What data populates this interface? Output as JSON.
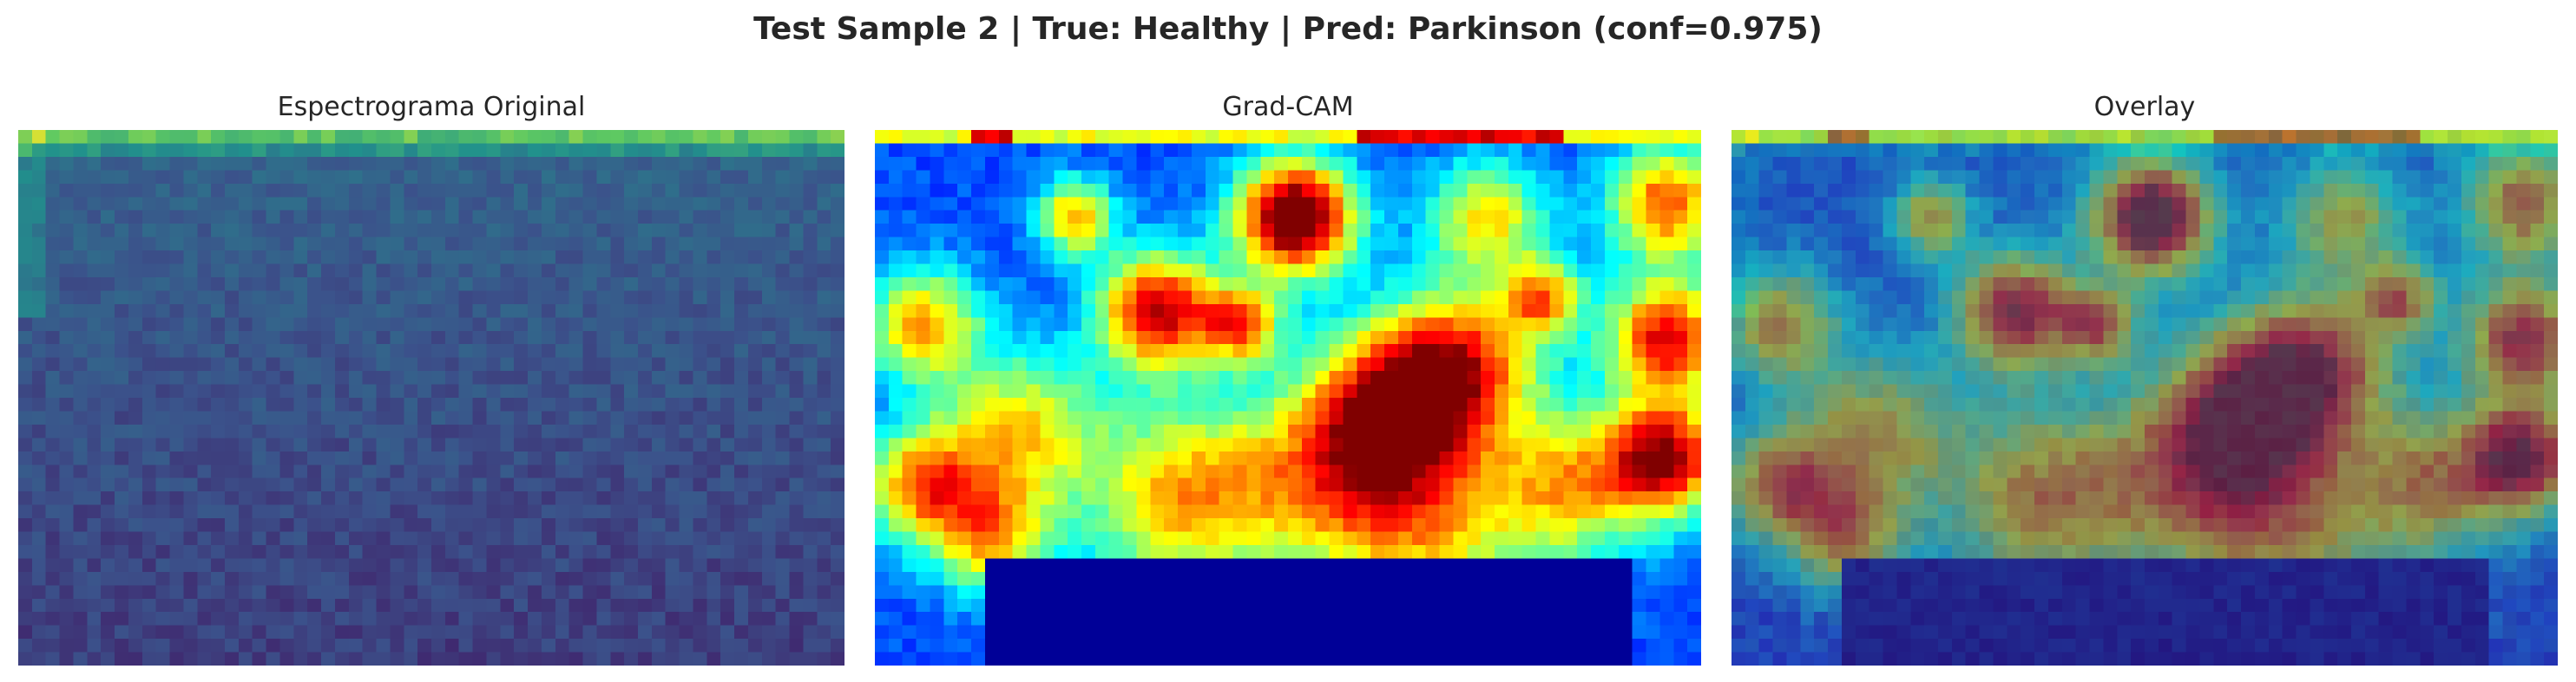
{
  "figure": {
    "suptitle": "Test Sample 2 | True: Healthy | Pred: Parkinson (conf=0.975)"
  },
  "panels": [
    {
      "title": "Espectrograma Original",
      "colormap": "viridis"
    },
    {
      "title": "Grad-CAM",
      "colormap": "jet"
    },
    {
      "title": "Overlay",
      "colormap": "viridis+jet overlay"
    }
  ],
  "colors": {
    "background": "#ffffff",
    "text": "#262626"
  }
}
